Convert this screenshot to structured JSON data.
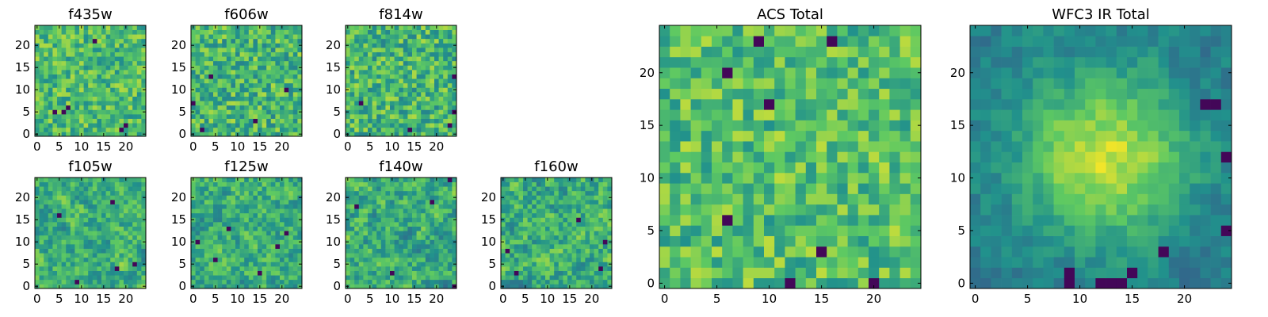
{
  "figure": {
    "background": "#ffffff",
    "colormap": "viridis",
    "colormap_stops": [
      "#440154",
      "#3b528b",
      "#21918c",
      "#5ec962",
      "#fde725"
    ]
  },
  "chart_data": [
    {
      "type": "heatmap",
      "title": "f435w",
      "x_ticks": [
        "0",
        "5",
        "10",
        "15",
        "20"
      ],
      "y_ticks": [
        "0",
        "5",
        "10",
        "15",
        "20"
      ],
      "xlim": [
        -0.5,
        24.5
      ],
      "ylim": [
        -0.5,
        24.5
      ],
      "shape": [
        25,
        25
      ],
      "pattern": "noise",
      "seed": 11,
      "mean": 0.68,
      "spread": 0.2,
      "dark_cells": [
        [
          19,
          1
        ],
        [
          20,
          2
        ],
        [
          7,
          6
        ],
        [
          13,
          21
        ],
        [
          4,
          5
        ],
        [
          6,
          5
        ]
      ]
    },
    {
      "type": "heatmap",
      "title": "f606w",
      "x_ticks": [
        "0",
        "5",
        "10",
        "15",
        "20"
      ],
      "y_ticks": [
        "0",
        "5",
        "10",
        "15",
        "20"
      ],
      "xlim": [
        -0.5,
        24.5
      ],
      "ylim": [
        -0.5,
        24.5
      ],
      "shape": [
        25,
        25
      ],
      "pattern": "noise",
      "seed": 23,
      "mean": 0.66,
      "spread": 0.22,
      "dark_cells": [
        [
          0,
          7
        ],
        [
          2,
          1
        ],
        [
          14,
          3
        ],
        [
          4,
          13
        ],
        [
          21,
          10
        ]
      ]
    },
    {
      "type": "heatmap",
      "title": "f814w",
      "x_ticks": [
        "0",
        "5",
        "10",
        "15",
        "20"
      ],
      "y_ticks": [
        "0",
        "5",
        "10",
        "15",
        "20"
      ],
      "xlim": [
        -0.5,
        24.5
      ],
      "ylim": [
        -0.5,
        24.5
      ],
      "shape": [
        25,
        25
      ],
      "pattern": "noise",
      "seed": 37,
      "mean": 0.66,
      "spread": 0.22,
      "dark_cells": [
        [
          24,
          13
        ],
        [
          24,
          5
        ],
        [
          23,
          2
        ],
        [
          3,
          7
        ],
        [
          14,
          1
        ]
      ]
    },
    {
      "type": "heatmap",
      "title": "f105w",
      "x_ticks": [
        "0",
        "5",
        "10",
        "15",
        "20"
      ],
      "y_ticks": [
        "0",
        "5",
        "10",
        "15",
        "20"
      ],
      "xlim": [
        -0.5,
        24.5
      ],
      "ylim": [
        -0.5,
        24.5
      ],
      "shape": [
        25,
        25
      ],
      "pattern": "smooth-noise",
      "seed": 51,
      "mean": 0.63,
      "spread": 0.28,
      "dark_cells": [
        [
          5,
          16
        ],
        [
          17,
          19
        ],
        [
          22,
          5
        ],
        [
          18,
          4
        ],
        [
          9,
          1
        ]
      ]
    },
    {
      "type": "heatmap",
      "title": "f125w",
      "x_ticks": [
        "0",
        "5",
        "10",
        "15",
        "20"
      ],
      "y_ticks": [
        "0",
        "5",
        "10",
        "15",
        "20"
      ],
      "xlim": [
        -0.5,
        24.5
      ],
      "ylim": [
        -0.5,
        24.5
      ],
      "shape": [
        25,
        25
      ],
      "pattern": "smooth-noise",
      "seed": 67,
      "mean": 0.63,
      "spread": 0.28,
      "dark_cells": [
        [
          1,
          10
        ],
        [
          8,
          13
        ],
        [
          19,
          9
        ],
        [
          21,
          12
        ],
        [
          5,
          6
        ],
        [
          15,
          3
        ]
      ]
    },
    {
      "type": "heatmap",
      "title": "f140w",
      "x_ticks": [
        "0",
        "5",
        "10",
        "15",
        "20"
      ],
      "y_ticks": [
        "0",
        "5",
        "10",
        "15",
        "20"
      ],
      "xlim": [
        -0.5,
        24.5
      ],
      "ylim": [
        -0.5,
        24.5
      ],
      "shape": [
        25,
        25
      ],
      "pattern": "smooth-noise",
      "seed": 83,
      "mean": 0.62,
      "spread": 0.3,
      "dark_cells": [
        [
          23,
          24
        ],
        [
          2,
          18
        ],
        [
          19,
          19
        ],
        [
          10,
          3
        ],
        [
          24,
          0
        ]
      ]
    },
    {
      "type": "heatmap",
      "title": "f160w",
      "x_ticks": [
        "0",
        "5",
        "10",
        "15",
        "20"
      ],
      "y_ticks": [
        "0",
        "5",
        "10",
        "15",
        "20"
      ],
      "xlim": [
        -0.5,
        24.5
      ],
      "ylim": [
        -0.5,
        24.5
      ],
      "shape": [
        25,
        25
      ],
      "pattern": "smooth-noise",
      "seed": 97,
      "mean": 0.62,
      "spread": 0.3,
      "dark_cells": [
        [
          1,
          8
        ],
        [
          23,
          10
        ],
        [
          17,
          15
        ],
        [
          3,
          3
        ],
        [
          22,
          4
        ]
      ]
    },
    {
      "type": "heatmap",
      "title": "ACS Total",
      "x_ticks": [
        "0",
        "5",
        "10",
        "15",
        "20"
      ],
      "y_ticks": [
        "0",
        "5",
        "10",
        "15",
        "20"
      ],
      "xlim": [
        -0.5,
        24.5
      ],
      "ylim": [
        -0.5,
        24.5
      ],
      "shape": [
        25,
        25
      ],
      "pattern": "noise",
      "seed": 113,
      "mean": 0.7,
      "spread": 0.2,
      "dark_cells": [
        [
          9,
          23
        ],
        [
          16,
          23
        ],
        [
          6,
          20
        ],
        [
          10,
          17
        ],
        [
          6,
          6
        ],
        [
          15,
          3
        ],
        [
          20,
          0
        ],
        [
          12,
          0
        ]
      ]
    },
    {
      "type": "heatmap",
      "title": "WFC3 IR Total",
      "x_ticks": [
        "0",
        "5",
        "10",
        "15",
        "20"
      ],
      "y_ticks": [
        "0",
        "5",
        "10",
        "15",
        "20"
      ],
      "xlim": [
        -0.5,
        24.5
      ],
      "ylim": [
        -0.5,
        24.5
      ],
      "shape": [
        25,
        25
      ],
      "pattern": "blob",
      "seed": 131,
      "center": [
        12.5,
        12.0
      ],
      "sigma": 5.5,
      "dark_cells": [
        [
          9,
          0
        ],
        [
          9,
          1
        ],
        [
          12,
          0
        ],
        [
          13,
          0
        ],
        [
          14,
          0
        ],
        [
          15,
          1
        ],
        [
          22,
          17
        ],
        [
          23,
          17
        ],
        [
          24,
          12
        ],
        [
          18,
          3
        ],
        [
          24,
          5
        ]
      ]
    }
  ]
}
